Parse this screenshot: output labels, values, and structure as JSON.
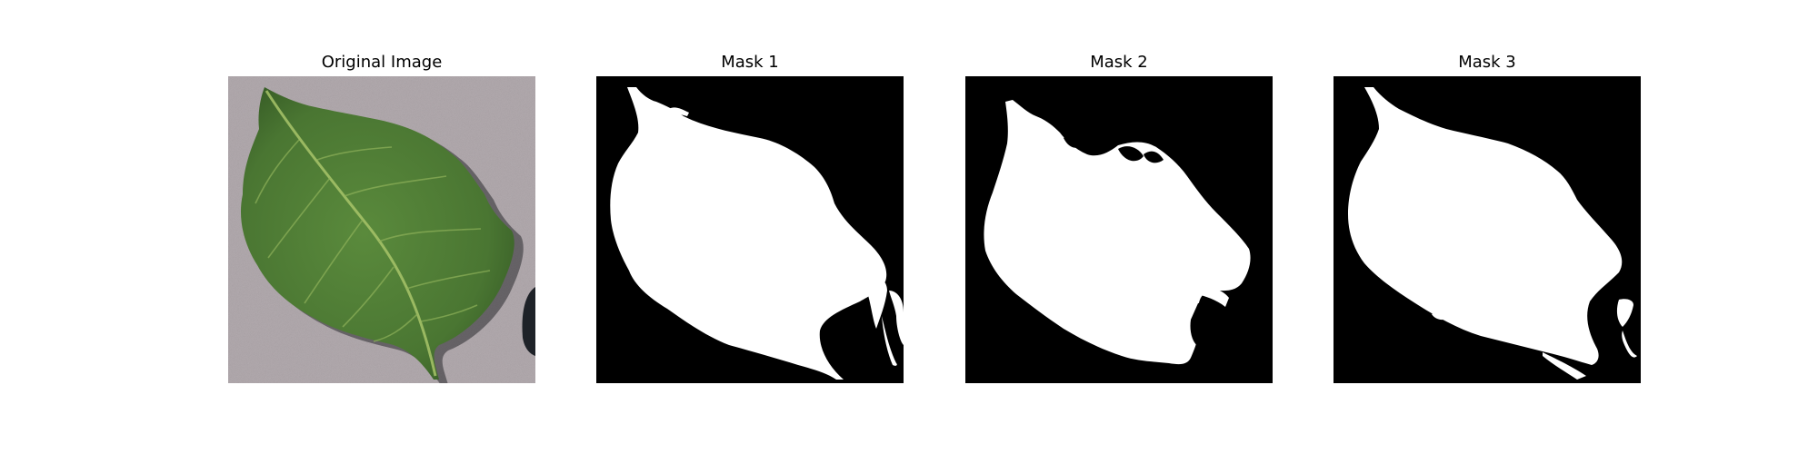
{
  "panels": [
    {
      "title": "Original Image",
      "kind": "photo",
      "subject": "leaf"
    },
    {
      "title": "Mask 1",
      "kind": "mask"
    },
    {
      "title": "Mask 2",
      "kind": "mask"
    },
    {
      "title": "Mask 3",
      "kind": "mask"
    }
  ],
  "colors": {
    "background": "#ffffff",
    "mask_background": "#000000",
    "mask_foreground": "#ffffff",
    "photo_background": "#b4acb0",
    "leaf_green": "#4f7a34",
    "leaf_dark": "#2f4f22",
    "leaf_vein": "#a8c46a"
  }
}
